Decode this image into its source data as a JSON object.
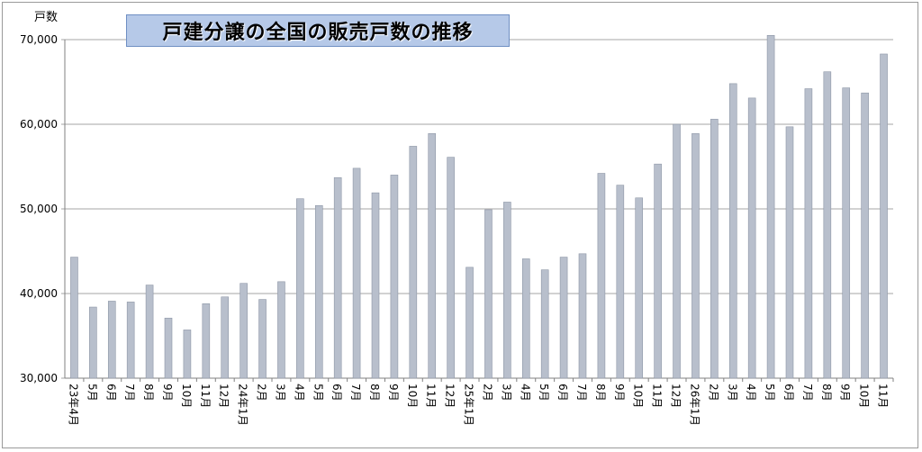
{
  "chart_data": {
    "type": "bar",
    "title": "戸建分譲の全国の販売戸数の推移",
    "ylabel": "戸数",
    "ylim": [
      30000,
      70000
    ],
    "yticks": [
      "30,000",
      "40,000",
      "50,000",
      "60,000",
      "70,000"
    ],
    "grid": true,
    "legend": "none",
    "colors": {
      "bar": "#b8bfcc",
      "bar_edge": "#8d96a6",
      "grid": "#a6a6a6"
    },
    "categories": [
      "23年4月",
      "5月",
      "6月",
      "7月",
      "8月",
      "9月",
      "10月",
      "11月",
      "12月",
      "24年1月",
      "2月",
      "3月",
      "4月",
      "5月",
      "6月",
      "7月",
      "8月",
      "9月",
      "10月",
      "11月",
      "12月",
      "25年1月",
      "2月",
      "3月",
      "4月",
      "5月",
      "6月",
      "7月",
      "8月",
      "9月",
      "10月",
      "11月",
      "12月",
      "26年1月",
      "2月",
      "3月",
      "4月",
      "5月",
      "6月",
      "7月",
      "8月",
      "9月",
      "10月",
      "11月"
    ],
    "values": [
      44300,
      38400,
      39100,
      39000,
      41000,
      37100,
      35700,
      38800,
      39600,
      41200,
      39300,
      41400,
      51200,
      50400,
      53700,
      54800,
      51900,
      54000,
      57400,
      58900,
      56100,
      43100,
      49900,
      50800,
      44100,
      42800,
      44300,
      44700,
      54200,
      52800,
      51300,
      55300,
      60000,
      58900,
      60600,
      64800,
      63100,
      70500,
      59700,
      64200,
      66200,
      64300,
      63700,
      68300
    ]
  }
}
